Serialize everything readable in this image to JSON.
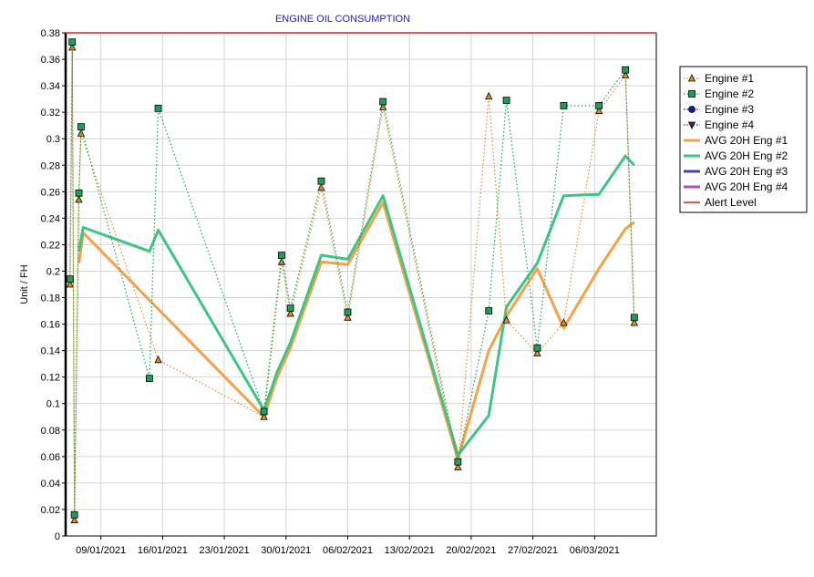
{
  "chart_data": {
    "type": "line",
    "title": "ENGINE OIL CONSUMPTION",
    "xlabel": "",
    "ylabel": "Unit / FH",
    "ylim": [
      0,
      0.38
    ],
    "xlim": [
      "2021-01-05",
      "2021-03-13"
    ],
    "yticks": [
      "0",
      "0.02",
      "0.04",
      "0.06",
      "0.08",
      "0.1",
      "0.12",
      "0.14",
      "0.16",
      "0.18",
      "0.2",
      "0.22",
      "0.24",
      "0.26",
      "0.28",
      "0.3",
      "0.32",
      "0.34",
      "0.36",
      "0.38"
    ],
    "xticks": [
      {
        "date": "2021-01-09",
        "label": "09/01/2021"
      },
      {
        "date": "2021-01-16",
        "label": "16/01/2021"
      },
      {
        "date": "2021-01-23",
        "label": "23/01/2021"
      },
      {
        "date": "2021-01-30",
        "label": "30/01/2021"
      },
      {
        "date": "2021-02-06",
        "label": "06/02/2021"
      },
      {
        "date": "2021-02-13",
        "label": "13/02/2021"
      },
      {
        "date": "2021-02-20",
        "label": "20/02/2021"
      },
      {
        "date": "2021-02-27",
        "label": "27/02/2021"
      },
      {
        "date": "2021-03-06",
        "label": "06/03/2021"
      }
    ],
    "grid": true,
    "legend_position": "right",
    "series": [
      {
        "name": "Engine #1",
        "kind": "points",
        "marker": "triangle",
        "color": "#e08a28",
        "x": [
          "2021-01-05 12:00",
          "2021-01-05 18:00",
          "2021-01-06 00:00",
          "2021-01-06 12:00",
          "2021-01-06 18:00",
          "2021-01-15 12:00",
          "2021-01-27 12:00",
          "2021-01-29 12:00",
          "2021-01-30 12:00",
          "2021-02-03 00:00",
          "2021-02-06 00:00",
          "2021-02-10 00:00",
          "2021-02-18 12:00",
          "2021-02-22 00:00",
          "2021-02-24 00:00",
          "2021-02-27 12:00",
          "2021-03-02 12:00",
          "2021-03-06 12:00",
          "2021-03-09 12:00",
          "2021-03-10 12:00"
        ],
        "y": [
          0.19,
          0.369,
          0.012,
          0.254,
          0.304,
          0.133,
          0.09,
          0.207,
          0.168,
          0.263,
          0.165,
          0.324,
          0.052,
          0.332,
          0.163,
          0.138,
          0.161,
          0.321,
          0.348,
          0.161
        ]
      },
      {
        "name": "Engine #2",
        "kind": "points",
        "marker": "square",
        "color": "#1e9e5a",
        "x": [
          "2021-01-05 12:00",
          "2021-01-05 18:00",
          "2021-01-06 00:00",
          "2021-01-06 12:00",
          "2021-01-06 18:00",
          "2021-01-14 12:00",
          "2021-01-15 12:00",
          "2021-01-27 12:00",
          "2021-01-29 12:00",
          "2021-01-30 12:00",
          "2021-02-03 00:00",
          "2021-02-06 00:00",
          "2021-02-10 00:00",
          "2021-02-18 12:00",
          "2021-02-22 00:00",
          "2021-02-24 00:00",
          "2021-02-27 12:00",
          "2021-03-02 12:00",
          "2021-03-06 12:00",
          "2021-03-09 12:00",
          "2021-03-10 12:00"
        ],
        "y": [
          0.194,
          0.373,
          0.016,
          0.259,
          0.309,
          0.119,
          0.323,
          0.094,
          0.212,
          0.172,
          0.268,
          0.169,
          0.328,
          0.056,
          0.17,
          0.329,
          0.142,
          0.325,
          0.325,
          0.352,
          0.165
        ]
      },
      {
        "name": "Engine #3",
        "kind": "points",
        "marker": "circle",
        "color": "#1a1aa0",
        "x": [],
        "y": []
      },
      {
        "name": "Engine #4",
        "kind": "points",
        "marker": "triangle-down",
        "color": "#5a1a5a",
        "x": [],
        "y": []
      },
      {
        "name": "AVG 20H Eng #1",
        "kind": "line",
        "color": "#f7a04a",
        "x": [
          "2021-01-06 12:00",
          "2021-01-07 00:00",
          "2021-01-27 12:00",
          "2021-01-29 00:00",
          "2021-01-30 12:00",
          "2021-02-03 00:00",
          "2021-02-06 00:00",
          "2021-02-10 00:00",
          "2021-02-18 12:00",
          "2021-02-22 00:00",
          "2021-02-24 00:00",
          "2021-02-27 12:00",
          "2021-03-02 12:00",
          "2021-03-06 12:00",
          "2021-03-09 12:00",
          "2021-03-10 12:00"
        ],
        "y": [
          0.206,
          0.229,
          0.09,
          0.12,
          0.142,
          0.207,
          0.205,
          0.252,
          0.058,
          0.14,
          0.166,
          0.202,
          0.157,
          0.202,
          0.232,
          0.237
        ]
      },
      {
        "name": "AVG 20H Eng #2",
        "kind": "line",
        "color": "#3ec486",
        "x": [
          "2021-01-06 12:00",
          "2021-01-07 00:00",
          "2021-01-14 12:00",
          "2021-01-15 12:00",
          "2021-01-27 12:00",
          "2021-01-29 00:00",
          "2021-01-30 12:00",
          "2021-02-03 00:00",
          "2021-02-06 00:00",
          "2021-02-10 00:00",
          "2021-02-18 12:00",
          "2021-02-22 00:00",
          "2021-02-24 00:00",
          "2021-02-27 12:00",
          "2021-03-02 12:00",
          "2021-03-06 12:00",
          "2021-03-09 12:00",
          "2021-03-10 12:00"
        ],
        "y": [
          0.215,
          0.233,
          0.215,
          0.231,
          0.095,
          0.124,
          0.146,
          0.212,
          0.209,
          0.257,
          0.061,
          0.091,
          0.173,
          0.206,
          0.257,
          0.258,
          0.287,
          0.28
        ]
      },
      {
        "name": "AVG 20H Eng #3",
        "kind": "line",
        "color": "#4040b0",
        "x": [],
        "y": []
      },
      {
        "name": "AVG 20H Eng #4",
        "kind": "line",
        "color": "#b050c0",
        "x": [],
        "y": []
      },
      {
        "name": "Alert Level",
        "kind": "hline",
        "color": "#e02020",
        "y": 0.38
      }
    ]
  }
}
